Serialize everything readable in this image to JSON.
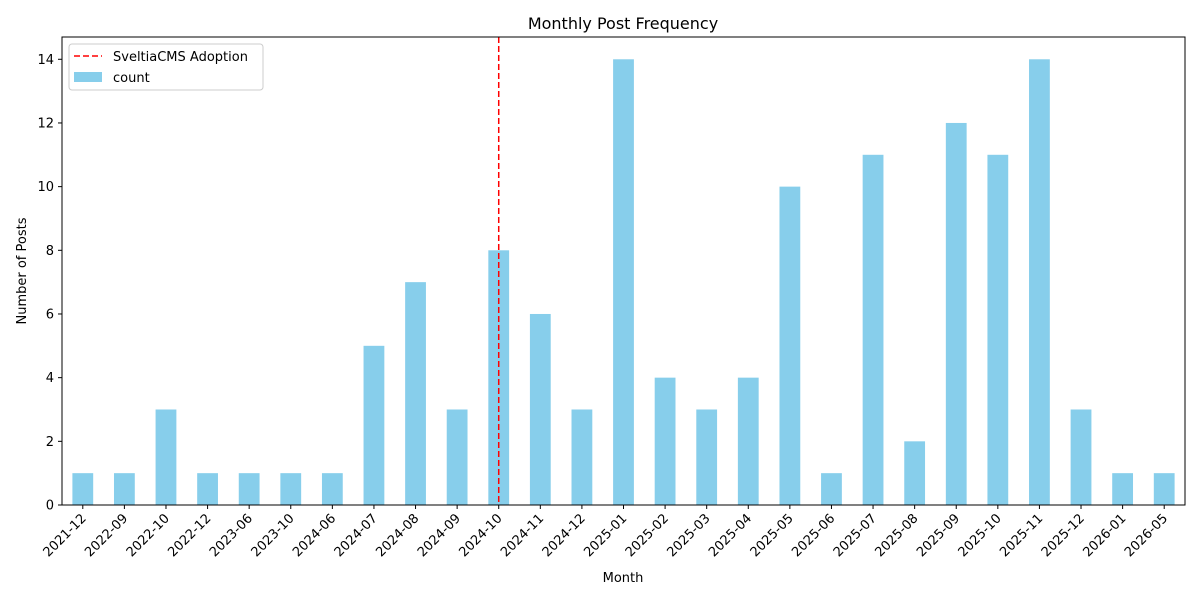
{
  "chart_data": {
    "type": "bar",
    "title": "Monthly Post Frequency",
    "xlabel": "Month",
    "ylabel": "Number of Posts",
    "ylim": [
      0,
      14.7
    ],
    "yticks": [
      0,
      2,
      4,
      6,
      8,
      10,
      12,
      14
    ],
    "grid": false,
    "legend_placement": "upper-left",
    "categories": [
      "2021-12",
      "2022-09",
      "2022-10",
      "2022-12",
      "2023-06",
      "2023-10",
      "2024-06",
      "2024-07",
      "2024-08",
      "2024-09",
      "2024-10",
      "2024-11",
      "2024-12",
      "2025-01",
      "2025-02",
      "2025-03",
      "2025-04",
      "2025-05",
      "2025-06",
      "2025-07",
      "2025-08",
      "2025-09",
      "2025-10",
      "2025-11",
      "2025-12",
      "2026-01",
      "2026-05"
    ],
    "series": [
      {
        "name": "count",
        "color": "#87ceeb",
        "values": [
          1,
          1,
          3,
          1,
          1,
          1,
          1,
          5,
          7,
          3,
          8,
          6,
          3,
          14,
          4,
          3,
          4,
          10,
          1,
          11,
          2,
          12,
          11,
          14,
          3,
          1,
          1
        ]
      }
    ],
    "annotations": [
      {
        "type": "vline",
        "name": "SveltiaCMS Adoption",
        "x": "2024-10",
        "color": "#ff0000",
        "style": "dashed"
      }
    ]
  }
}
